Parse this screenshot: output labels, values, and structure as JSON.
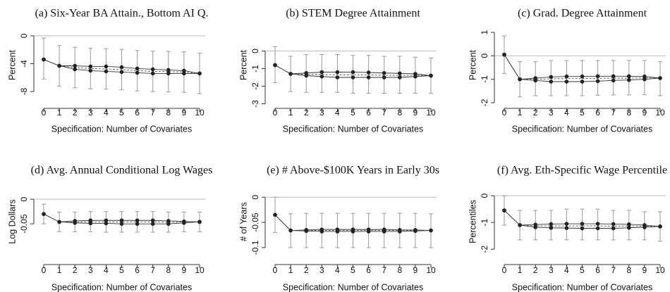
{
  "chart_data": [
    {
      "type": "line",
      "title": "(a) Six-Year BA Attain., Bottom AI Q.",
      "xlabel": "Specification: Number of Covariates",
      "ylabel": "Percent",
      "x": [
        0,
        1,
        2,
        3,
        4,
        5,
        6,
        7,
        8,
        9,
        10
      ],
      "ylim": [
        -10,
        1.6
      ],
      "yticks": [
        0,
        -4,
        -8
      ],
      "ref_line": 0,
      "upper": [
        -3.4,
        -4.3,
        -4.3,
        -4.4,
        -4.4,
        -4.5,
        -4.7,
        -4.8,
        -4.9,
        -5.0,
        -5.4
      ],
      "lower": [
        -3.4,
        -4.3,
        -4.8,
        -5.0,
        -5.1,
        -5.2,
        -5.3,
        -5.4,
        -5.4,
        -5.4,
        -5.4
      ],
      "middle": [
        -3.4,
        -4.3,
        -4.55,
        -4.7,
        -4.75,
        -4.85,
        -5.0,
        -5.1,
        -5.15,
        -5.2,
        -5.4
      ],
      "ci_low": [
        -6.2,
        -7.2,
        -7.45,
        -7.6,
        -7.65,
        -7.75,
        -7.9,
        -8.0,
        -8.05,
        -8.1,
        -8.3
      ],
      "ci_high": [
        -0.3,
        -1.4,
        -1.65,
        -1.8,
        -1.85,
        -1.95,
        -2.1,
        -2.2,
        -2.25,
        -2.3,
        -2.5
      ]
    },
    {
      "type": "line",
      "title": "(b) STEM Degree Attainment",
      "xlabel": "Specification: Number of Covariates",
      "ylabel": "Percent",
      "x": [
        0,
        1,
        2,
        3,
        4,
        5,
        6,
        7,
        8,
        9,
        10
      ],
      "ylim": [
        -3.1,
        1.5
      ],
      "yticks": [
        0,
        -1,
        -2,
        -3
      ],
      "ref_line": 0,
      "upper": [
        -0.8,
        -1.3,
        -1.25,
        -1.2,
        -1.2,
        -1.2,
        -1.22,
        -1.25,
        -1.27,
        -1.3,
        -1.4
      ],
      "lower": [
        -0.8,
        -1.3,
        -1.4,
        -1.45,
        -1.5,
        -1.5,
        -1.5,
        -1.5,
        -1.5,
        -1.45,
        -1.4
      ],
      "middle": [
        -0.8,
        -1.3,
        -1.33,
        -1.33,
        -1.35,
        -1.35,
        -1.36,
        -1.38,
        -1.39,
        -1.38,
        -1.4
      ],
      "ci_low": [
        -1.8,
        -2.3,
        -2.35,
        -2.35,
        -2.35,
        -2.4,
        -2.4,
        -2.4,
        -2.4,
        -2.4,
        -2.4
      ],
      "ci_high": [
        0.25,
        -0.3,
        -0.2,
        -0.2,
        -0.2,
        -0.25,
        -0.25,
        -0.3,
        -0.3,
        -0.35,
        -0.4
      ]
    },
    {
      "type": "line",
      "title": "(c) Grad. Degree Attainment",
      "xlabel": "Specification: Number of Covariates",
      "ylabel": "Percent",
      "x": [
        0,
        1,
        2,
        3,
        4,
        5,
        6,
        7,
        8,
        9,
        10
      ],
      "ylim": [
        -2.12,
        1.33
      ],
      "yticks": [
        1,
        0,
        -1,
        -2
      ],
      "ref_line": 0,
      "upper": [
        0.05,
        -1.0,
        -0.95,
        -0.9,
        -0.88,
        -0.88,
        -0.87,
        -0.87,
        -0.87,
        -0.88,
        -0.95
      ],
      "lower": [
        0.05,
        -1.0,
        -1.05,
        -1.1,
        -1.1,
        -1.1,
        -1.08,
        -1.05,
        -1.03,
        -1.0,
        -0.95
      ],
      "middle": [
        0.05,
        -1.0,
        -1.0,
        -0.98,
        -0.97,
        -0.97,
        -0.96,
        -0.95,
        -0.95,
        -0.94,
        -0.95
      ],
      "ci_low": [
        -0.75,
        -1.75,
        -1.7,
        -1.7,
        -1.7,
        -1.7,
        -1.68,
        -1.67,
        -1.67,
        -1.66,
        -1.7
      ],
      "ci_high": [
        0.85,
        -0.25,
        -0.25,
        -0.2,
        -0.2,
        -0.2,
        -0.2,
        -0.2,
        -0.2,
        -0.2,
        -0.25
      ]
    },
    {
      "type": "line",
      "title": "(d) Avg. Annual Conditional Log Wages",
      "xlabel": "Specification: Number of Covariates",
      "ylabel": "Log Dollars",
      "x": [
        0,
        1,
        2,
        3,
        4,
        5,
        6,
        7,
        8,
        9,
        10
      ],
      "ylim": [
        -0.127,
        0.036
      ],
      "yticks": [
        0,
        -0.05
      ],
      "ref_line": 0,
      "upper": [
        -0.03,
        -0.046,
        -0.044,
        -0.043,
        -0.043,
        -0.043,
        -0.043,
        -0.043,
        -0.044,
        -0.045,
        -0.046
      ],
      "lower": [
        -0.03,
        -0.046,
        -0.048,
        -0.049,
        -0.049,
        -0.05,
        -0.05,
        -0.05,
        -0.05,
        -0.048,
        -0.046
      ],
      "middle": [
        -0.03,
        -0.046,
        -0.046,
        -0.046,
        -0.046,
        -0.046,
        -0.046,
        -0.046,
        -0.047,
        -0.046,
        -0.046
      ],
      "ci_low": [
        -0.05,
        -0.066,
        -0.066,
        -0.066,
        -0.067,
        -0.067,
        -0.067,
        -0.067,
        -0.067,
        -0.066,
        -0.066
      ],
      "ci_high": [
        -0.01,
        -0.026,
        -0.026,
        -0.025,
        -0.025,
        -0.025,
        -0.025,
        -0.025,
        -0.026,
        -0.026,
        -0.026
      ]
    },
    {
      "type": "line",
      "title": "(e) # Above-$100K Years in Early 30s",
      "xlabel": "Specification: Number of Covariates",
      "ylabel": "# of Years",
      "x": [
        0,
        1,
        2,
        3,
        4,
        5,
        6,
        7,
        8,
        9,
        10
      ],
      "ylim": [
        -0.128,
        0.031
      ],
      "yticks": [
        0,
        -0.05,
        -0.1
      ],
      "ref_line": 0,
      "upper": [
        -0.035,
        -0.066,
        -0.065,
        -0.064,
        -0.064,
        -0.064,
        -0.064,
        -0.064,
        -0.065,
        -0.065,
        -0.066
      ],
      "lower": [
        -0.035,
        -0.066,
        -0.067,
        -0.068,
        -0.068,
        -0.068,
        -0.068,
        -0.068,
        -0.068,
        -0.067,
        -0.066
      ],
      "middle": [
        -0.035,
        -0.066,
        -0.066,
        -0.066,
        -0.066,
        -0.066,
        -0.066,
        -0.066,
        -0.066,
        -0.066,
        -0.066
      ],
      "ci_low": [
        -0.07,
        -0.1,
        -0.1,
        -0.1,
        -0.1,
        -0.1,
        -0.1,
        -0.1,
        -0.1,
        -0.1,
        -0.1
      ],
      "ci_high": [
        0.0,
        -0.033,
        -0.032,
        -0.032,
        -0.032,
        -0.032,
        -0.032,
        -0.032,
        -0.032,
        -0.032,
        -0.033
      ]
    },
    {
      "type": "line",
      "title": "(f) Avg. Eth-Specific Wage Percentile",
      "xlabel": "Specification: Number of Covariates",
      "ylabel": "Percentiles",
      "x": [
        0,
        1,
        2,
        3,
        4,
        5,
        6,
        7,
        8,
        9,
        10
      ],
      "ylim": [
        -2.47,
        0.53
      ],
      "yticks": [
        0,
        -1,
        -2
      ],
      "ref_line": 0,
      "upper": [
        -0.55,
        -1.1,
        -1.08,
        -1.06,
        -1.05,
        -1.05,
        -1.05,
        -1.06,
        -1.07,
        -1.1,
        -1.15
      ],
      "lower": [
        -0.55,
        -1.1,
        -1.18,
        -1.2,
        -1.21,
        -1.22,
        -1.22,
        -1.22,
        -1.2,
        -1.18,
        -1.15
      ],
      "middle": [
        -0.55,
        -1.1,
        -1.13,
        -1.13,
        -1.13,
        -1.13,
        -1.13,
        -1.14,
        -1.13,
        -1.14,
        -1.15
      ],
      "ci_low": [
        -1.1,
        -1.65,
        -1.65,
        -1.65,
        -1.65,
        -1.65,
        -1.65,
        -1.65,
        -1.65,
        -1.65,
        -1.7
      ],
      "ci_high": [
        0.0,
        -0.55,
        -0.55,
        -0.55,
        -0.5,
        -0.5,
        -0.5,
        -0.55,
        -0.55,
        -0.6,
        -0.6
      ]
    }
  ]
}
